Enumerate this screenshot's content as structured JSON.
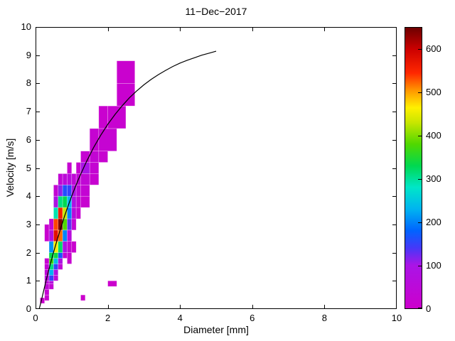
{
  "chart_data": {
    "type": "heatmap",
    "title": "11−Dec−2017",
    "xlabel": "Diameter [mm]",
    "ylabel": "Velocity [m/s]",
    "xlim": [
      0,
      10
    ],
    "ylim": [
      0,
      10
    ],
    "xticks": [
      0,
      2,
      4,
      6,
      8,
      10
    ],
    "yticks": [
      0,
      1,
      2,
      3,
      4,
      5,
      6,
      7,
      8,
      9,
      10
    ],
    "grid": false,
    "legend_position": "none",
    "colorbar": {
      "min": 0,
      "max": 650,
      "ticks": [
        0,
        100,
        200,
        300,
        400,
        500,
        600
      ]
    },
    "colormap": [
      {
        "v": 0,
        "color": "#cc00cc"
      },
      {
        "v": 100,
        "color": "#aa14e6"
      },
      {
        "v": 140,
        "color": "#4638f8"
      },
      {
        "v": 180,
        "color": "#0064ff"
      },
      {
        "v": 230,
        "color": "#00b4f0"
      },
      {
        "v": 280,
        "color": "#00e6c8"
      },
      {
        "v": 330,
        "color": "#00d850"
      },
      {
        "v": 380,
        "color": "#50d800"
      },
      {
        "v": 430,
        "color": "#c8e600"
      },
      {
        "v": 465,
        "color": "#fff000"
      },
      {
        "v": 505,
        "color": "#ff9600"
      },
      {
        "v": 545,
        "color": "#ff2800"
      },
      {
        "v": 600,
        "color": "#cc0000"
      },
      {
        "v": 650,
        "color": "#6e0000"
      }
    ],
    "cells_format": [
      "d_min_mm",
      "d_max_mm",
      "v_min_ms",
      "v_max_ms",
      "count"
    ],
    "cells": [
      [
        0.125,
        0.25,
        0.2,
        0.4,
        6
      ],
      [
        0.25,
        0.375,
        0.3,
        0.5,
        10
      ],
      [
        0.25,
        0.375,
        0.5,
        0.7,
        22
      ],
      [
        0.25,
        0.375,
        0.7,
        0.9,
        38
      ],
      [
        0.25,
        0.375,
        0.9,
        1.0,
        50
      ],
      [
        0.25,
        0.375,
        1.0,
        1.2,
        60
      ],
      [
        0.25,
        0.375,
        1.2,
        1.4,
        45
      ],
      [
        0.25,
        0.375,
        1.4,
        1.6,
        30
      ],
      [
        0.25,
        0.375,
        1.6,
        1.8,
        18
      ],
      [
        0.25,
        0.375,
        2.4,
        3.0,
        12
      ],
      [
        0.375,
        0.5,
        0.7,
        0.9,
        30
      ],
      [
        0.375,
        0.5,
        0.9,
        1.0,
        70
      ],
      [
        0.375,
        0.5,
        1.0,
        1.2,
        150
      ],
      [
        0.375,
        0.5,
        1.2,
        1.4,
        230
      ],
      [
        0.375,
        0.5,
        1.4,
        1.6,
        310
      ],
      [
        0.375,
        0.5,
        1.6,
        1.8,
        370
      ],
      [
        0.375,
        0.5,
        1.8,
        2.0,
        330
      ],
      [
        0.375,
        0.5,
        2.0,
        2.4,
        210
      ],
      [
        0.375,
        0.5,
        2.4,
        2.8,
        80
      ],
      [
        0.375,
        0.5,
        2.8,
        3.2,
        30
      ],
      [
        0.5,
        0.625,
        1.0,
        1.2,
        40
      ],
      [
        0.5,
        0.625,
        1.2,
        1.4,
        80
      ],
      [
        0.5,
        0.625,
        1.4,
        1.6,
        150
      ],
      [
        0.5,
        0.625,
        1.6,
        1.8,
        240
      ],
      [
        0.5,
        0.625,
        1.8,
        2.0,
        340
      ],
      [
        0.5,
        0.625,
        2.0,
        2.4,
        460
      ],
      [
        0.5,
        0.625,
        2.4,
        2.8,
        575
      ],
      [
        0.5,
        0.625,
        2.8,
        3.2,
        535
      ],
      [
        0.5,
        0.625,
        3.2,
        3.6,
        290
      ],
      [
        0.5,
        0.625,
        3.6,
        4.0,
        90
      ],
      [
        0.5,
        0.625,
        4.0,
        4.4,
        28
      ],
      [
        0.625,
        0.75,
        1.4,
        1.6,
        35
      ],
      [
        0.625,
        0.75,
        1.6,
        1.8,
        85
      ],
      [
        0.625,
        0.75,
        1.8,
        2.0,
        165
      ],
      [
        0.625,
        0.75,
        2.0,
        2.4,
        320
      ],
      [
        0.625,
        0.75,
        2.4,
        2.8,
        520
      ],
      [
        0.625,
        0.75,
        2.8,
        3.2,
        640
      ],
      [
        0.625,
        0.75,
        3.2,
        3.6,
        560
      ],
      [
        0.625,
        0.75,
        3.6,
        4.0,
        310
      ],
      [
        0.625,
        0.75,
        4.0,
        4.4,
        110
      ],
      [
        0.625,
        0.75,
        4.4,
        4.8,
        32
      ],
      [
        0.75,
        0.875,
        1.8,
        2.0,
        28
      ],
      [
        0.75,
        0.875,
        2.0,
        2.4,
        90
      ],
      [
        0.75,
        0.875,
        2.4,
        2.8,
        200
      ],
      [
        0.75,
        0.875,
        2.8,
        3.2,
        380
      ],
      [
        0.75,
        0.875,
        3.2,
        3.6,
        430
      ],
      [
        0.75,
        0.875,
        3.6,
        4.0,
        330
      ],
      [
        0.75,
        0.875,
        4.0,
        4.4,
        160
      ],
      [
        0.75,
        0.875,
        4.4,
        4.8,
        48
      ],
      [
        0.875,
        1.0,
        1.6,
        2.0,
        14
      ],
      [
        0.875,
        1.0,
        2.0,
        2.4,
        26
      ],
      [
        0.875,
        1.0,
        2.4,
        2.8,
        60
      ],
      [
        0.875,
        1.0,
        2.8,
        3.2,
        130
      ],
      [
        0.875,
        1.0,
        3.2,
        3.6,
        200
      ],
      [
        0.875,
        1.0,
        3.6,
        4.0,
        230
      ],
      [
        0.875,
        1.0,
        4.0,
        4.4,
        150
      ],
      [
        0.875,
        1.0,
        4.4,
        4.8,
        60
      ],
      [
        0.875,
        1.0,
        4.8,
        5.2,
        18
      ],
      [
        1.0,
        1.125,
        2.0,
        2.4,
        8
      ],
      [
        1.0,
        1.125,
        2.8,
        3.2,
        24
      ],
      [
        1.0,
        1.125,
        3.2,
        3.6,
        55
      ],
      [
        1.0,
        1.125,
        3.6,
        4.0,
        90
      ],
      [
        1.0,
        1.125,
        4.0,
        4.4,
        80
      ],
      [
        1.0,
        1.125,
        4.4,
        4.8,
        38
      ],
      [
        1.125,
        1.25,
        3.2,
        3.6,
        18
      ],
      [
        1.125,
        1.25,
        3.6,
        4.0,
        34
      ],
      [
        1.125,
        1.25,
        4.0,
        4.4,
        44
      ],
      [
        1.125,
        1.25,
        4.4,
        4.8,
        34
      ],
      [
        1.125,
        1.25,
        4.8,
        5.2,
        16
      ],
      [
        1.25,
        1.5,
        3.6,
        4.0,
        14
      ],
      [
        1.25,
        1.5,
        4.0,
        4.4,
        26
      ],
      [
        1.25,
        1.5,
        4.4,
        4.8,
        34
      ],
      [
        1.25,
        1.5,
        4.8,
        5.2,
        100
      ],
      [
        1.25,
        1.5,
        5.2,
        5.6,
        22
      ],
      [
        1.5,
        1.75,
        4.4,
        4.8,
        14
      ],
      [
        1.5,
        1.75,
        4.8,
        5.2,
        24
      ],
      [
        1.5,
        1.75,
        5.2,
        5.6,
        28
      ],
      [
        1.5,
        1.75,
        5.6,
        6.4,
        20
      ],
      [
        1.75,
        2.0,
        5.2,
        5.6,
        14
      ],
      [
        1.75,
        2.25,
        5.6,
        6.4,
        22
      ],
      [
        1.75,
        2.0,
        6.4,
        7.2,
        10
      ],
      [
        2.0,
        2.5,
        6.4,
        7.2,
        16
      ],
      [
        2.25,
        2.75,
        7.2,
        8.0,
        12
      ],
      [
        2.25,
        2.75,
        8.0,
        8.8,
        9
      ],
      [
        1.25,
        1.375,
        0.3,
        0.5,
        3
      ],
      [
        2.0,
        2.25,
        0.8,
        1.0,
        4
      ]
    ],
    "curve": {
      "name": "terminal-velocity-curve",
      "color": "#000000",
      "points": [
        [
          0.1,
          0.0
        ],
        [
          0.15,
          0.24
        ],
        [
          0.2,
          0.52
        ],
        [
          0.3,
          1.05
        ],
        [
          0.4,
          1.55
        ],
        [
          0.5,
          2.02
        ],
        [
          0.6,
          2.46
        ],
        [
          0.7,
          2.88
        ],
        [
          0.8,
          3.28
        ],
        [
          0.9,
          3.65
        ],
        [
          1.0,
          4.0
        ],
        [
          1.1,
          4.33
        ],
        [
          1.2,
          4.64
        ],
        [
          1.4,
          5.2
        ],
        [
          1.6,
          5.71
        ],
        [
          1.8,
          6.15
        ],
        [
          2.0,
          6.55
        ],
        [
          2.2,
          6.9
        ],
        [
          2.4,
          7.21
        ],
        [
          2.6,
          7.49
        ],
        [
          2.8,
          7.73
        ],
        [
          3.0,
          7.95
        ],
        [
          3.2,
          8.14
        ],
        [
          3.4,
          8.31
        ],
        [
          3.6,
          8.46
        ],
        [
          3.8,
          8.6
        ],
        [
          4.0,
          8.72
        ],
        [
          4.2,
          8.82
        ],
        [
          4.4,
          8.91
        ],
        [
          4.6,
          9.0
        ],
        [
          4.8,
          9.07
        ],
        [
          5.0,
          9.14
        ]
      ]
    }
  }
}
